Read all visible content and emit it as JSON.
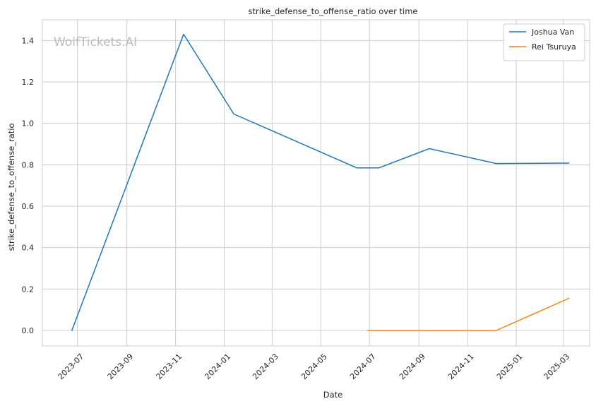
{
  "chart_data": {
    "type": "line",
    "title": "strike_defense_to_offense_ratio over time",
    "xlabel": "Date",
    "ylabel": "strike_defense_to_offense_ratio",
    "watermark": "WolfTickets.AI",
    "xlim": [
      "2023-05-18",
      "2025-04-03"
    ],
    "ylim": [
      -0.075,
      1.5
    ],
    "x_ticks": [
      "2023-07-01",
      "2023-09-01",
      "2023-11-01",
      "2024-01-01",
      "2024-03-01",
      "2024-05-01",
      "2024-07-01",
      "2024-09-01",
      "2024-11-01",
      "2025-01-01",
      "2025-03-01"
    ],
    "x_tick_labels": [
      "2023-07",
      "2023-09",
      "2023-11",
      "2024-01",
      "2024-03",
      "2024-05",
      "2024-07",
      "2024-09",
      "2024-11",
      "2025-01",
      "2025-03"
    ],
    "y_ticks": [
      0.0,
      0.2,
      0.4,
      0.6,
      0.8,
      1.0,
      1.2,
      1.4
    ],
    "y_tick_labels": [
      "0.0",
      "0.2",
      "0.4",
      "0.6",
      "0.8",
      "1.0",
      "1.2",
      "1.4"
    ],
    "grid": true,
    "legend_position": "top-right",
    "series": [
      {
        "name": "Joshua Van",
        "color": "#1f77b4",
        "x": [
          "2023-06-24",
          "2023-11-11",
          "2024-01-13",
          "2024-06-15",
          "2024-07-13",
          "2024-09-14",
          "2024-12-07",
          "2025-03-08"
        ],
        "y": [
          0.0,
          1.43,
          1.045,
          0.785,
          0.785,
          0.878,
          0.806,
          0.808
        ]
      },
      {
        "name": "Rei Tsuruya",
        "color": "#ff7f0e",
        "x": [
          "2024-06-29",
          "2024-12-07",
          "2025-03-08"
        ],
        "y": [
          0.0,
          0.0,
          0.155
        ]
      }
    ]
  }
}
